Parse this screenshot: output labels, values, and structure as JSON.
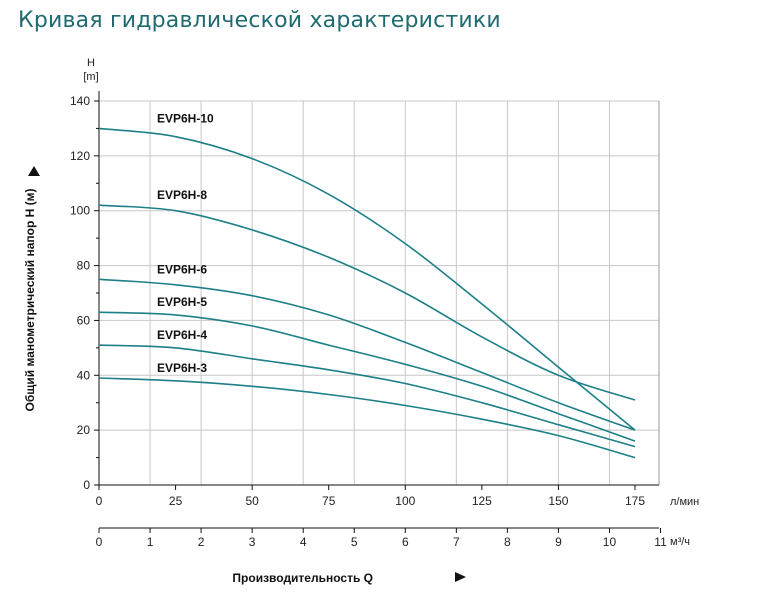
{
  "title": "Кривая гидравлической характеристики",
  "chart_data": {
    "type": "line",
    "title": "Кривая гидравлической характеристики",
    "xlabel": "Производительность Q",
    "ylabel": "Общий манометрический напор H (м)",
    "y_unit_top": "H",
    "y_unit_bottom": "[m]",
    "x_unit_primary": "л/мин",
    "x_unit_secondary": "м³/ч",
    "xlim": [
      0,
      175
    ],
    "ylim": [
      0,
      140
    ],
    "x_secondary_lim": [
      0,
      11
    ],
    "x_ticks": [
      0,
      25,
      50,
      75,
      100,
      125,
      150,
      175
    ],
    "x_secondary_ticks": [
      0,
      1,
      2,
      3,
      4,
      5,
      6,
      7,
      8,
      9,
      10,
      11
    ],
    "y_ticks": [
      0,
      20,
      40,
      60,
      80,
      100,
      120,
      140
    ],
    "grid": true,
    "line_color": "#1d7f88",
    "x": [
      0,
      25,
      50,
      75,
      100,
      125,
      150,
      175
    ],
    "series": [
      {
        "name": "EVP6H-10",
        "values": [
          130,
          127,
          119,
          106,
          88,
          66,
          43,
          20
        ]
      },
      {
        "name": "EVP6H-8",
        "values": [
          102,
          100,
          93,
          83,
          70,
          54,
          40,
          31
        ]
      },
      {
        "name": "EVP6H-6",
        "values": [
          75,
          73,
          69,
          62,
          52,
          41,
          30,
          20
        ]
      },
      {
        "name": "EVP6H-5",
        "values": [
          63,
          62,
          58,
          51,
          44,
          36,
          26,
          16
        ]
      },
      {
        "name": "EVP6H-4",
        "values": [
          51,
          50,
          46,
          42,
          37,
          30,
          22,
          14
        ]
      },
      {
        "name": "EVP6H-3",
        "values": [
          39,
          38,
          36,
          33,
          29,
          24,
          18,
          10
        ]
      }
    ]
  }
}
